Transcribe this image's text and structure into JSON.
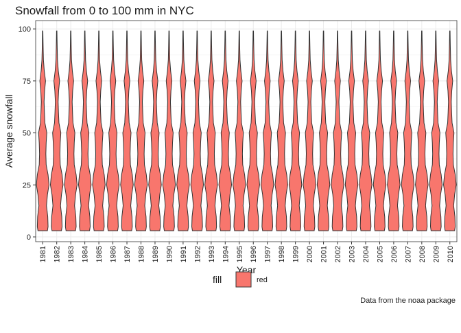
{
  "chart_data": {
    "type": "violin",
    "title": "Snowfall from 0 to 100 mm in NYC",
    "x_label": "Year",
    "y_label": "Average snowfall",
    "caption": "Data from the noaa package",
    "legend_title": "fill",
    "legend_labels": [
      "red"
    ],
    "color": "#F8766D",
    "categories": [
      "1981",
      "1982",
      "1983",
      "1984",
      "1985",
      "1986",
      "1987",
      "1988",
      "1989",
      "1990",
      "1991",
      "1992",
      "1993",
      "1994",
      "1995",
      "1996",
      "1997",
      "1998",
      "1999",
      "2000",
      "2001",
      "2002",
      "2003",
      "2004",
      "2005",
      "2006",
      "2007",
      "2008",
      "2009",
      "2010"
    ],
    "ymin": [
      3,
      3,
      3,
      3,
      3,
      3,
      3,
      3,
      3,
      3,
      3,
      3,
      3,
      3,
      3,
      3,
      3,
      3,
      3,
      3,
      3,
      3,
      3,
      3,
      3,
      3,
      3,
      3,
      3,
      3
    ],
    "ymax": [
      99,
      99,
      99,
      99,
      99,
      99,
      99,
      99,
      99,
      99,
      99,
      99,
      99,
      99,
      99,
      99,
      99,
      99,
      99,
      99,
      99,
      99,
      99,
      99,
      99,
      99,
      99,
      99,
      99,
      99
    ],
    "density": {
      "t": [
        0,
        0.02,
        0.07,
        0.125,
        0.18,
        0.23,
        0.28,
        0.33,
        0.385,
        0.44,
        0.49,
        0.54,
        0.59,
        0.645,
        0.7,
        0.75,
        0.8,
        0.855,
        0.91,
        0.96,
        1
      ],
      "w": [
        0.75,
        0.85,
        0.8,
        0.6,
        0.75,
        1.0,
        0.85,
        0.55,
        0.5,
        0.55,
        0.65,
        0.35,
        0.28,
        0.22,
        0.3,
        0.45,
        0.25,
        0.12,
        0.08,
        0.05,
        0.03
      ]
    },
    "ylim": [
      -2.3,
      104
    ],
    "yticks": [
      0,
      25,
      50,
      75,
      100
    ],
    "grid": true
  }
}
